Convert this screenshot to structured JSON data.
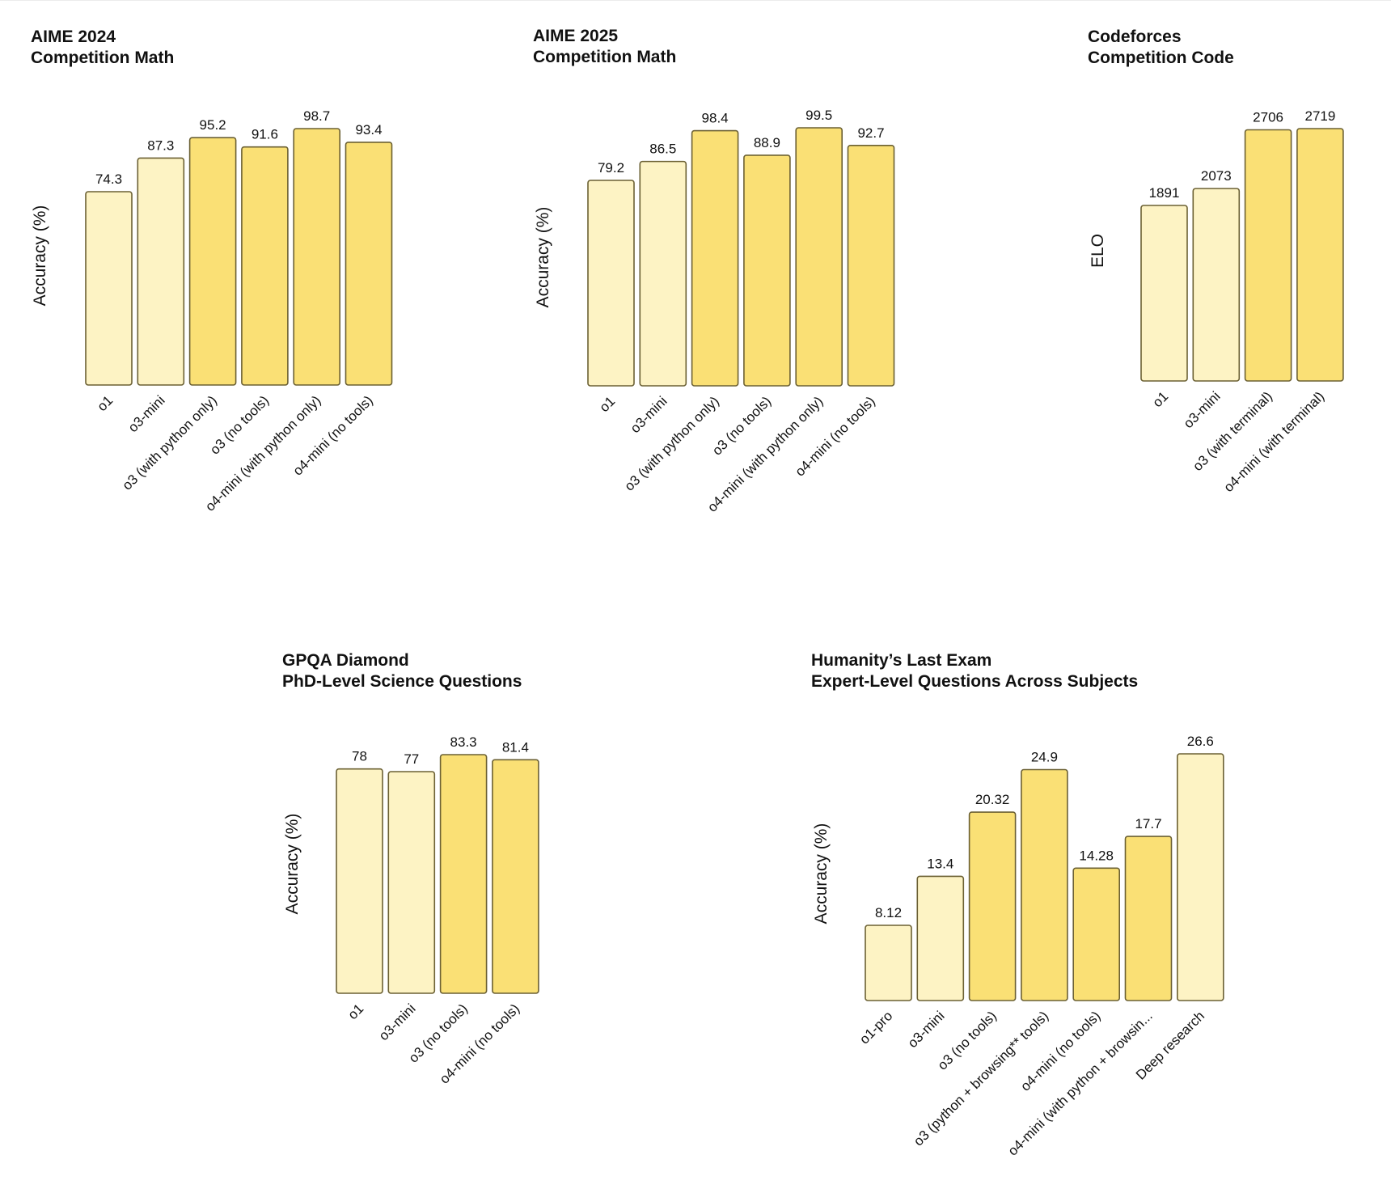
{
  "colors": {
    "light": "#fdf3c4",
    "dark": "#fae075",
    "stroke": "#6b6033"
  },
  "chart_data": [
    {
      "type": "bar",
      "title": "AIME 2024",
      "subtitle": "Competition Math",
      "ylabel": "Accuracy (%)",
      "categories": [
        "o1",
        "o3-mini",
        "o3 (with python only)",
        "o3 (no tools)",
        "o4-mini (with python only)",
        "o4-mini (no tools)"
      ],
      "values": [
        74.3,
        87.3,
        95.2,
        91.6,
        98.7,
        93.4
      ],
      "value_labels": [
        "74.3",
        "87.3",
        "95.2",
        "91.6",
        "98.7",
        "93.4"
      ],
      "shades": [
        "light",
        "light",
        "dark",
        "dark",
        "dark",
        "dark"
      ]
    },
    {
      "type": "bar",
      "title": "AIME 2025",
      "subtitle": "Competition Math",
      "ylabel": "Accuracy (%)",
      "categories": [
        "o1",
        "o3-mini",
        "o3 (with python only)",
        "o3 (no tools)",
        "o4-mini (with python only)",
        "o4-mini (no tools)"
      ],
      "values": [
        79.2,
        86.5,
        98.4,
        88.9,
        99.5,
        92.7
      ],
      "value_labels": [
        "79.2",
        "86.5",
        "98.4",
        "88.9",
        "99.5",
        "92.7"
      ],
      "shades": [
        "light",
        "light",
        "dark",
        "dark",
        "dark",
        "dark"
      ]
    },
    {
      "type": "bar",
      "title": "Codeforces",
      "subtitle": "Competition Code",
      "ylabel": "ELO",
      "categories": [
        "o1",
        "o3-mini",
        "o3 (with terminal)",
        "o4-mini (with terminal)"
      ],
      "values": [
        1891,
        2073,
        2706,
        2719
      ],
      "value_labels": [
        "1891",
        "2073",
        "2706",
        "2719"
      ],
      "shades": [
        "light",
        "light",
        "dark",
        "dark"
      ]
    },
    {
      "type": "bar",
      "title": "GPQA Diamond",
      "subtitle": "PhD-Level Science Questions",
      "ylabel": "Accuracy (%)",
      "categories": [
        "o1",
        "o3-mini",
        "o3 (no tools)",
        "o4-mini (no tools)"
      ],
      "values": [
        78,
        77,
        83.3,
        81.4
      ],
      "value_labels": [
        "78",
        "77",
        "83.3",
        "81.4"
      ],
      "shades": [
        "light",
        "light",
        "dark",
        "dark"
      ]
    },
    {
      "type": "bar",
      "title": "Humanity’s Last Exam",
      "subtitle": "Expert-Level Questions Across Subjects",
      "ylabel": "Accuracy (%)",
      "categories": [
        "o1-pro",
        "o3-mini",
        "o3 (no tools)",
        "o3 (python + browsing** tools)",
        "o4-mini (no tools)",
        "o4-mini (with python + browsin...",
        "Deep research"
      ],
      "values": [
        8.12,
        13.4,
        20.32,
        24.9,
        14.28,
        17.7,
        26.6
      ],
      "value_labels": [
        "8.12",
        "13.4",
        "20.32",
        "24.9",
        "14.28",
        "17.7",
        "26.6"
      ],
      "shades": [
        "light",
        "light",
        "dark",
        "dark",
        "dark",
        "dark",
        "light"
      ]
    }
  ]
}
